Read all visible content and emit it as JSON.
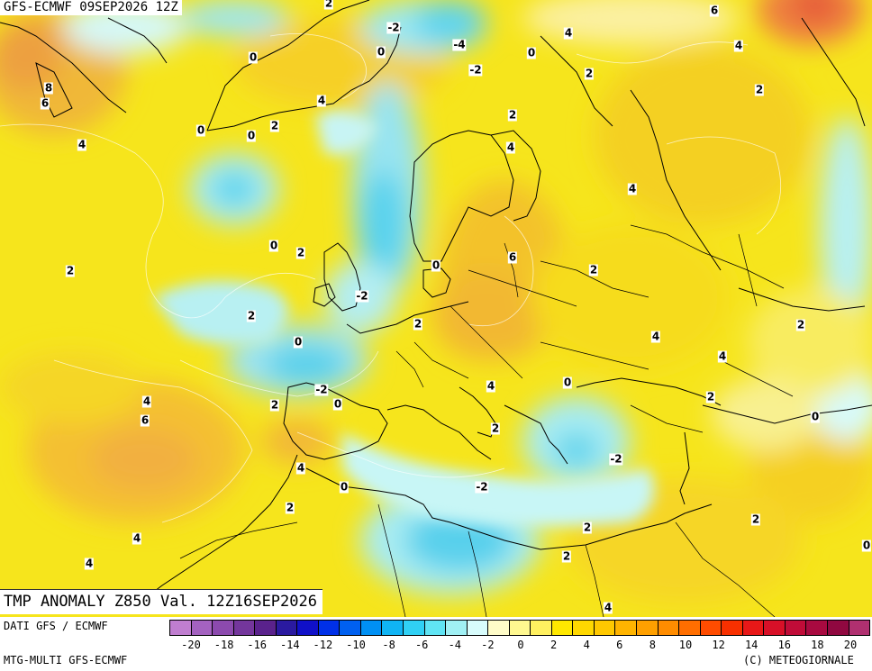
{
  "header": {
    "model_run": "GFS-ECMWF 09SEP2026 12Z"
  },
  "banner": {
    "title": "TMP ANOMALY Z850 Val. 12Z16SEP2026"
  },
  "footer": {
    "data_source": "DATI GFS / ECMWF",
    "product": "MTG-MULTI GFS-ECMWF",
    "copyright": "(C) METEOGIORNALE"
  },
  "map": {
    "type": "temperature-anomaly-850hPa",
    "region": "Europe / North Atlantic / Mediterranean",
    "contour_labels": [
      {
        "text": "2"
      },
      {
        "text": "-2"
      },
      {
        "text": "-4"
      },
      {
        "text": "-2"
      },
      {
        "text": "0"
      },
      {
        "text": "4"
      },
      {
        "text": "6"
      },
      {
        "text": "4"
      },
      {
        "text": "2"
      },
      {
        "text": "0"
      },
      {
        "text": "8"
      },
      {
        "text": "6"
      },
      {
        "text": "4"
      },
      {
        "text": "0"
      },
      {
        "text": "0"
      },
      {
        "text": "4"
      },
      {
        "text": "2"
      },
      {
        "text": "2"
      },
      {
        "text": "4"
      },
      {
        "text": "2"
      },
      {
        "text": "4"
      },
      {
        "text": "0"
      },
      {
        "text": "0"
      },
      {
        "text": "2"
      },
      {
        "text": "2"
      },
      {
        "text": "0"
      },
      {
        "text": "6"
      },
      {
        "text": "2"
      },
      {
        "text": "-2"
      },
      {
        "text": "2"
      },
      {
        "text": "2"
      },
      {
        "text": "2"
      },
      {
        "text": "0"
      },
      {
        "text": "4"
      },
      {
        "text": "4"
      },
      {
        "text": "4"
      },
      {
        "text": "-2"
      },
      {
        "text": "0"
      },
      {
        "text": "2"
      },
      {
        "text": "0"
      },
      {
        "text": "2"
      },
      {
        "text": "2"
      },
      {
        "text": "4"
      },
      {
        "text": "6"
      },
      {
        "text": "2"
      },
      {
        "text": "4"
      },
      {
        "text": "0"
      },
      {
        "text": "-2"
      },
      {
        "text": "-2"
      },
      {
        "text": "2"
      },
      {
        "text": "0"
      },
      {
        "text": "4"
      },
      {
        "text": "2"
      },
      {
        "text": "2"
      },
      {
        "text": "4"
      },
      {
        "text": "0"
      },
      {
        "text": "4"
      }
    ]
  },
  "legend": {
    "ticks": [
      "-20",
      "-18",
      "-16",
      "-14",
      "-12",
      "-10",
      "-8",
      "-6",
      "-4",
      "-2",
      "0",
      "2",
      "4",
      "6",
      "8",
      "10",
      "12",
      "14",
      "16",
      "18",
      "20"
    ],
    "colors": [
      "#c07ed0",
      "#a462c0",
      "#8c4aae",
      "#74369c",
      "#5a228c",
      "#2a1aa0",
      "#1010c8",
      "#0030e8",
      "#0060f0",
      "#0090f4",
      "#10b4f4",
      "#30d0f4",
      "#60e4f4",
      "#a0f0f4",
      "#d8fcfc",
      "#fffcc8",
      "#fff890",
      "#fff060",
      "#ffe800",
      "#ffd800",
      "#ffc800",
      "#ffb400",
      "#ffa000",
      "#ff8c00",
      "#ff6e00",
      "#ff4c00",
      "#f83000",
      "#e81818",
      "#d81028",
      "#c00c38",
      "#a80a40",
      "#900840",
      "#b03070"
    ]
  }
}
